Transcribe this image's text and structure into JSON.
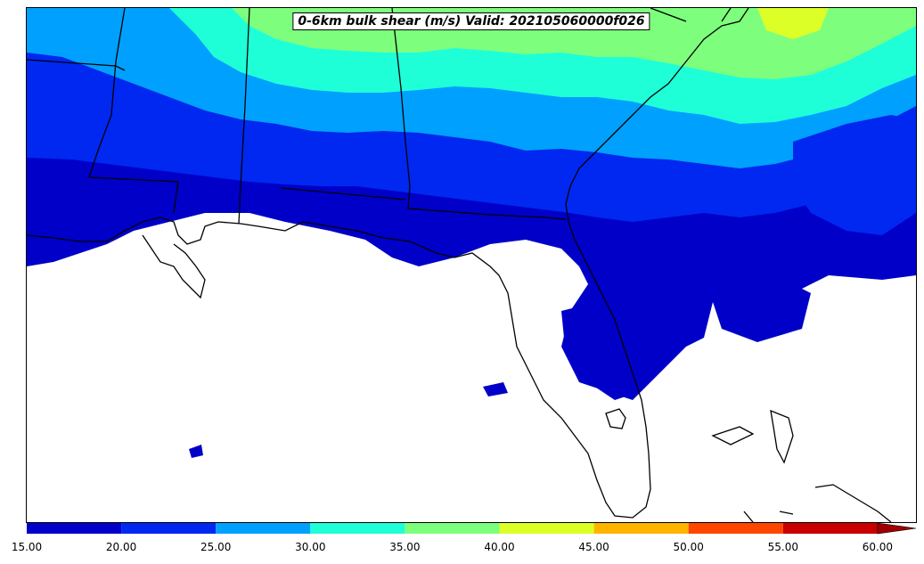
{
  "title": "0-6km bulk shear (m/s) Valid: 202105060000f026",
  "colors": {
    "c15": "#0000c8",
    "c20": "#0028f0",
    "c25": "#00a0ff",
    "c30": "#1effd8",
    "c35": "#7dff7d",
    "c40": "#dcff28",
    "c45": "#ffb400",
    "c50": "#ff4600",
    "c55": "#c80000",
    "coast": "#000000"
  },
  "colorbar": {
    "ticks": [
      "15.00",
      "20.00",
      "25.00",
      "30.00",
      "35.00",
      "40.00",
      "45.00",
      "50.00",
      "55.00",
      "60.00"
    ],
    "colors": [
      "#0000c8",
      "#0028f0",
      "#00a0ff",
      "#1effd8",
      "#7dff7d",
      "#dcff28",
      "#ffb400",
      "#ff4600",
      "#c80000"
    ],
    "extend_color": "#a00000"
  }
}
